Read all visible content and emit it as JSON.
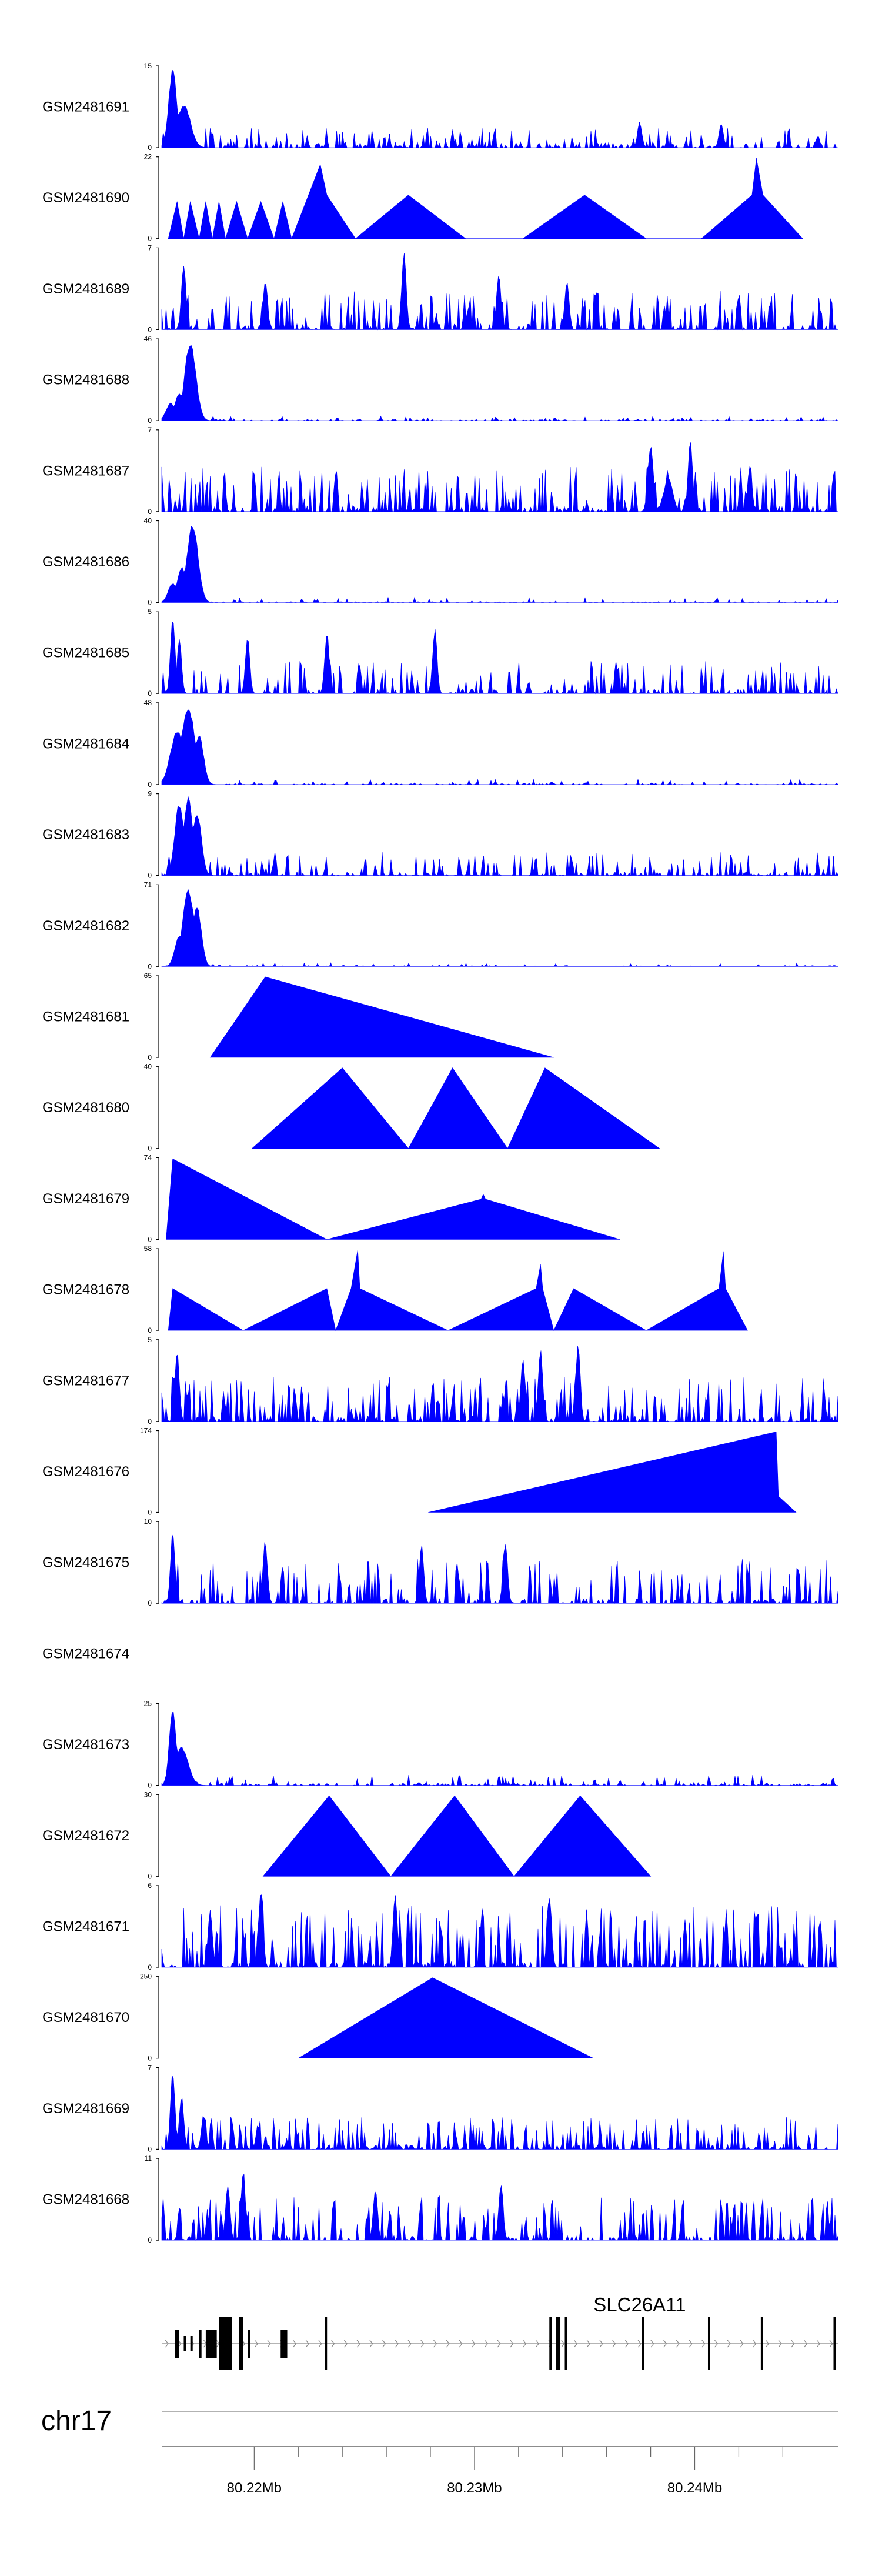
{
  "chart_data": {
    "type": "area",
    "chromosome": "chr17",
    "x_axis": {
      "range_mb": [
        80.2158,
        80.2465
      ],
      "major_ticks": [
        80.22,
        80.23,
        80.24
      ],
      "major_tick_labels": [
        "80.22Mb",
        "80.23Mb",
        "80.24Mb"
      ],
      "minor_ticks": [
        80.222,
        80.224,
        80.226,
        80.228,
        80.232,
        80.234,
        80.236,
        80.238,
        80.242,
        80.244
      ]
    },
    "fill_color": "#0000ff",
    "tracks": [
      {
        "name": "GSM2481691",
        "ymax": "15",
        "ymin": "0",
        "max": 15,
        "kind": "dense",
        "seed": 11,
        "base": 0.05,
        "mid": 0.13,
        "spike_prob": 0.22,
        "peaks": [
          [
            80.2163,
            1.0,
            0.00018
          ],
          [
            80.2168,
            0.55,
            0.0003
          ],
          [
            80.2375,
            0.32,
            0.0001
          ],
          [
            80.2412,
            0.3,
            0.0001
          ]
        ]
      },
      {
        "name": "GSM2481690",
        "ymax": "22",
        "ymin": "0",
        "max": 22,
        "kind": "tri",
        "pts": [
          [
            80.2161,
            0
          ],
          [
            80.2165,
            0.46
          ],
          [
            80.2168,
            0
          ],
          [
            80.2171,
            0.46
          ],
          [
            80.2175,
            0
          ],
          [
            80.2178,
            0.46
          ],
          [
            80.2181,
            0
          ],
          [
            80.2184,
            0.46
          ],
          [
            80.2187,
            0
          ],
          [
            80.2192,
            0.46
          ],
          [
            80.2197,
            0
          ],
          [
            80.2203,
            0.46
          ],
          [
            80.2209,
            0
          ],
          [
            80.2213,
            0.46
          ],
          [
            80.2217,
            0
          ],
          [
            80.223,
            0.92
          ],
          [
            80.2233,
            0.54
          ],
          [
            80.2246,
            0
          ],
          [
            80.227,
            0.54
          ],
          [
            80.2296,
            0
          ],
          [
            80.2322,
            0
          ],
          [
            80.235,
            0.54
          ],
          [
            80.2378,
            0
          ],
          [
            80.2403,
            0
          ],
          [
            80.2426,
            0.54
          ],
          [
            80.2428,
            1.0
          ],
          [
            80.2431,
            0.54
          ],
          [
            80.2449,
            0
          ]
        ]
      },
      {
        "name": "GSM2481689",
        "ymax": "7",
        "ymin": "0",
        "max": 7,
        "kind": "dense",
        "seed": 23,
        "base": 0.05,
        "mid": 0.26,
        "spike_prob": 0.3,
        "peaks": [
          [
            80.2168,
            0.85,
            0.0001
          ],
          [
            80.2205,
            0.62,
            0.0001
          ],
          [
            80.2268,
            1.0,
            0.0001
          ],
          [
            80.2311,
            0.7,
            0.0001
          ],
          [
            80.2342,
            0.6,
            0.0001
          ]
        ]
      },
      {
        "name": "GSM2481688",
        "ymax": "46",
        "ymin": "0",
        "max": 46,
        "kind": "dense",
        "seed": 37,
        "base": 0.01,
        "mid": 0.03,
        "spike_prob": 0.08,
        "peaks": [
          [
            80.2171,
            1.0,
            0.00025
          ],
          [
            80.2162,
            0.22,
            0.0002
          ],
          [
            80.2166,
            0.35,
            0.0002
          ]
        ]
      },
      {
        "name": "GSM2481687",
        "ymax": "7",
        "ymin": "0",
        "max": 7,
        "kind": "dense",
        "seed": 41,
        "base": 0.05,
        "mid": 0.3,
        "spike_prob": 0.32,
        "peaks": [
          [
            80.238,
            0.86,
            0.00012
          ],
          [
            80.2398,
            0.92,
            0.0001
          ],
          [
            80.2425,
            0.56,
            0.0001
          ],
          [
            80.2388,
            0.42,
            0.0002
          ]
        ]
      },
      {
        "name": "GSM2481686",
        "ymax": "40",
        "ymin": "0",
        "max": 40,
        "kind": "dense",
        "seed": 53,
        "base": 0.01,
        "mid": 0.035,
        "spike_prob": 0.08,
        "peaks": [
          [
            80.2172,
            1.0,
            0.00025
          ],
          [
            80.2163,
            0.25,
            0.0002
          ],
          [
            80.2167,
            0.45,
            0.0002
          ]
        ]
      },
      {
        "name": "GSM2481685",
        "ymax": "5",
        "ymin": "0",
        "max": 5,
        "kind": "dense",
        "seed": 67,
        "base": 0.04,
        "mid": 0.22,
        "spike_prob": 0.24,
        "peaks": [
          [
            80.2163,
            1.0,
            0.0001
          ],
          [
            80.2166,
            0.7,
            0.0001
          ],
          [
            80.2197,
            0.72,
            0.0001
          ],
          [
            80.2233,
            0.78,
            0.0001
          ],
          [
            80.2282,
            0.82,
            0.0001
          ]
        ]
      },
      {
        "name": "GSM2481684",
        "ymax": "48",
        "ymin": "0",
        "max": 48,
        "kind": "dense",
        "seed": 71,
        "base": 0.01,
        "mid": 0.035,
        "spike_prob": 0.08,
        "peaks": [
          [
            80.2165,
            0.68,
            0.0003
          ],
          [
            80.217,
            1.0,
            0.0003
          ],
          [
            80.2175,
            0.62,
            0.0002
          ]
        ]
      },
      {
        "name": "GSM2481683",
        "ymax": "9",
        "ymin": "0",
        "max": 9,
        "kind": "dense",
        "seed": 83,
        "base": 0.03,
        "mid": 0.16,
        "spike_prob": 0.25,
        "peaks": [
          [
            80.2166,
            0.92,
            0.0002
          ],
          [
            80.217,
            1.0,
            0.0002
          ],
          [
            80.2174,
            0.8,
            0.0002
          ]
        ]
      },
      {
        "name": "GSM2481682",
        "ymax": "71",
        "ymin": "0",
        "max": 71,
        "kind": "dense",
        "seed": 97,
        "base": 0.01,
        "mid": 0.025,
        "spike_prob": 0.07,
        "peaks": [
          [
            80.217,
            1.0,
            0.00025
          ],
          [
            80.2174,
            0.75,
            0.0002
          ],
          [
            80.2166,
            0.38,
            0.0002
          ]
        ]
      },
      {
        "name": "GSM2481681",
        "ymax": "65",
        "ymin": "0",
        "max": 65,
        "kind": "tri",
        "pts": [
          [
            80.218,
            0
          ],
          [
            80.2205,
            1.0
          ],
          [
            80.2336,
            0
          ]
        ]
      },
      {
        "name": "GSM2481680",
        "ymax": "40",
        "ymin": "0",
        "max": 40,
        "kind": "tri",
        "pts": [
          [
            80.2199,
            0
          ],
          [
            80.224,
            1.0
          ],
          [
            80.227,
            0
          ],
          [
            80.229,
            1.0
          ],
          [
            80.2315,
            0
          ],
          [
            80.2332,
            1.0
          ],
          [
            80.2384,
            0
          ]
        ]
      },
      {
        "name": "GSM2481679",
        "ymax": "74",
        "ymin": "0",
        "max": 74,
        "kind": "tri",
        "pts": [
          [
            80.216,
            0
          ],
          [
            80.2163,
            1.0
          ],
          [
            80.2233,
            0
          ],
          [
            80.2303,
            0.5
          ],
          [
            80.2304,
            0.56
          ],
          [
            80.2305,
            0.5
          ],
          [
            80.2366,
            0
          ]
        ]
      },
      {
        "name": "GSM2481678",
        "ymax": "58",
        "ymin": "0",
        "max": 58,
        "kind": "tri",
        "pts": [
          [
            80.2161,
            0
          ],
          [
            80.2163,
            0.52
          ],
          [
            80.2195,
            0
          ],
          [
            80.2233,
            0.52
          ],
          [
            80.2237,
            0
          ],
          [
            80.2244,
            0.52
          ],
          [
            80.2247,
            1.0
          ],
          [
            80.2248,
            0.52
          ],
          [
            80.2288,
            0
          ],
          [
            80.2328,
            0.52
          ],
          [
            80.233,
            0.82
          ],
          [
            80.2331,
            0.52
          ],
          [
            80.2336,
            0
          ],
          [
            80.2345,
            0.52
          ],
          [
            80.2378,
            0
          ],
          [
            80.2411,
            0.52
          ],
          [
            80.2413,
            0.98
          ],
          [
            80.2414,
            0.52
          ],
          [
            80.2424,
            0
          ]
        ]
      },
      {
        "name": "GSM2481677",
        "ymax": "5",
        "ymin": "0",
        "max": 5,
        "kind": "dense",
        "seed": 113,
        "base": 0.05,
        "mid": 0.3,
        "spike_prob": 0.35,
        "peaks": [
          [
            80.2165,
            0.9,
            0.0001
          ],
          [
            80.233,
            0.94,
            0.0001
          ],
          [
            80.2347,
            0.97,
            0.0001
          ],
          [
            80.2322,
            0.78,
            0.0001
          ]
        ]
      },
      {
        "name": "GSM2481676",
        "ymax": "174",
        "ymin": "0",
        "max": 174,
        "kind": "tri",
        "pts": [
          [
            80.2279,
            0
          ],
          [
            80.2437,
            1.0
          ],
          [
            80.2438,
            0.2
          ],
          [
            80.2446,
            0
          ]
        ]
      },
      {
        "name": "GSM2481675",
        "ymax": "10",
        "ymin": "0",
        "max": 10,
        "kind": "dense",
        "seed": 131,
        "base": 0.04,
        "mid": 0.3,
        "spike_prob": 0.28,
        "peaks": [
          [
            80.2163,
            0.92,
            0.0001
          ],
          [
            80.2205,
            0.8,
            0.0001
          ],
          [
            80.2276,
            0.74,
            0.0001
          ],
          [
            80.2314,
            0.8,
            0.0001
          ]
        ]
      },
      {
        "name": "GSM2481674",
        "ymax": "",
        "ymin": "",
        "max": 0,
        "kind": "empty"
      },
      {
        "name": "GSM2481673",
        "ymax": "25",
        "ymin": "0",
        "max": 25,
        "kind": "dense",
        "seed": 149,
        "base": 0.02,
        "mid": 0.07,
        "spike_prob": 0.15,
        "peaks": [
          [
            80.2163,
            1.0,
            0.00015
          ],
          [
            80.2167,
            0.48,
            0.0003
          ]
        ]
      },
      {
        "name": "GSM2481672",
        "ymax": "30",
        "ymin": "0",
        "max": 30,
        "kind": "tri",
        "pts": [
          [
            80.2204,
            0
          ],
          [
            80.2234,
            1.0
          ],
          [
            80.2262,
            0
          ],
          [
            80.2291,
            1.0
          ],
          [
            80.2318,
            0
          ],
          [
            80.2348,
            1.0
          ],
          [
            80.238,
            0
          ]
        ]
      },
      {
        "name": "GSM2481671",
        "ymax": "6",
        "ymin": "0",
        "max": 6,
        "kind": "dense",
        "seed": 163,
        "base": 0.05,
        "mid": 0.42,
        "spike_prob": 0.38,
        "peaks": [
          [
            80.2203,
            1.0,
            0.0001
          ],
          [
            80.2264,
            0.92,
            0.0001
          ],
          [
            80.2334,
            0.94,
            0.0001
          ],
          [
            80.218,
            0.74,
            0.0001
          ]
        ]
      },
      {
        "name": "GSM2481670",
        "ymax": "250",
        "ymin": "0",
        "max": 250,
        "kind": "tri",
        "pts": [
          [
            80.222,
            0
          ],
          [
            80.2281,
            1.0
          ],
          [
            80.2354,
            0
          ]
        ]
      },
      {
        "name": "GSM2481669",
        "ymax": "7",
        "ymin": "0",
        "max": 7,
        "kind": "dense",
        "seed": 181,
        "base": 0.04,
        "mid": 0.22,
        "spike_prob": 0.3,
        "peaks": [
          [
            80.2163,
            1.0,
            0.0001
          ],
          [
            80.2167,
            0.7,
            0.0001
          ],
          [
            80.2177,
            0.44,
            0.0001
          ]
        ]
      },
      {
        "name": "GSM2481668",
        "ymax": "11",
        "ymin": "0",
        "max": 11,
        "kind": "dense",
        "seed": 199,
        "base": 0.04,
        "mid": 0.3,
        "spike_prob": 0.32,
        "peaks": [
          [
            80.2195,
            0.88,
            0.0001
          ],
          [
            80.2188,
            0.7,
            0.0001
          ],
          [
            80.2255,
            0.64,
            0.0001
          ],
          [
            80.2312,
            0.7,
            0.0001
          ]
        ]
      }
    ],
    "gene_track": {
      "gene_name": "SLC26A11",
      "strand": "+",
      "intron_line": [
        80.2158,
        80.2465
      ],
      "exons": [
        [
          80.2164,
          80.2166,
          "thick"
        ],
        [
          80.2168,
          80.2169,
          "thin"
        ],
        [
          80.2171,
          80.2172,
          "thin"
        ],
        [
          80.2175,
          80.2176,
          "thick"
        ],
        [
          80.2178,
          80.2183,
          "thick"
        ],
        [
          80.2184,
          80.219,
          "tall"
        ],
        [
          80.2193,
          80.2195,
          "tall"
        ],
        [
          80.2197,
          80.2198,
          "thick"
        ],
        [
          80.2212,
          80.2215,
          "thick"
        ],
        [
          80.2232,
          80.2233,
          "tall"
        ],
        [
          80.2334,
          80.2335,
          "tall"
        ],
        [
          80.2337,
          80.2339,
          "tall"
        ],
        [
          80.2341,
          80.2342,
          "tall"
        ],
        [
          80.2376,
          80.2377,
          "tall"
        ],
        [
          80.2406,
          80.2407,
          "tall"
        ],
        [
          80.243,
          80.2431,
          "tall"
        ],
        [
          80.2463,
          80.2464,
          "tall"
        ]
      ]
    }
  }
}
